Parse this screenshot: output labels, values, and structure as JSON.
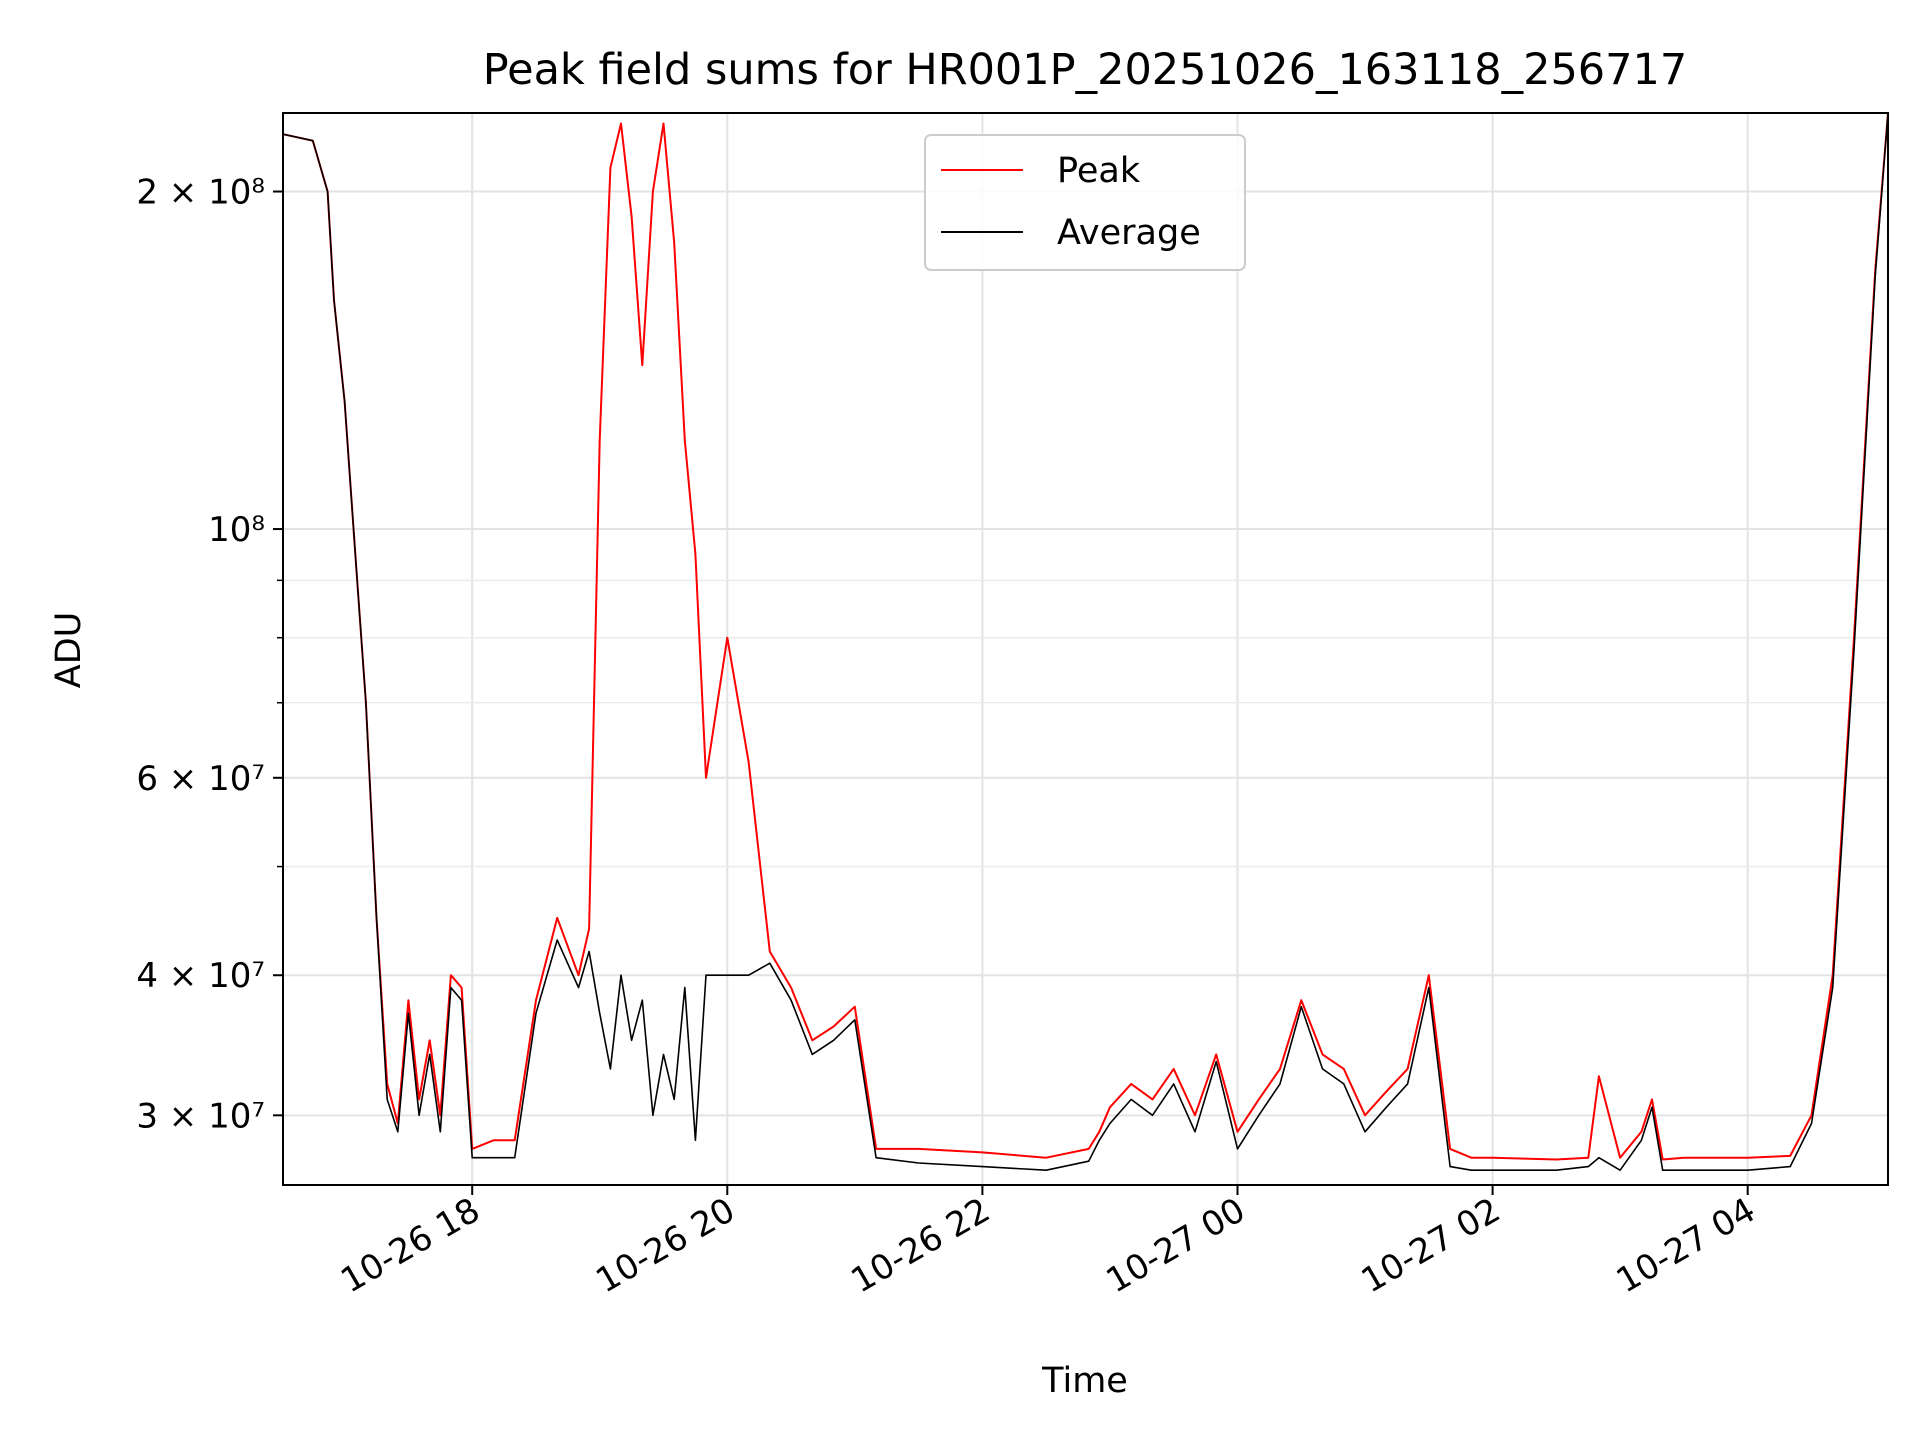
{
  "chart_data": {
    "type": "line",
    "title": "Peak field sums for HR001P_20251026_163118_256717",
    "xlabel": "Time",
    "ylabel": "ADU",
    "yscale": "log",
    "grid": true,
    "legend_position": "top-center",
    "xlim": [
      "2025-10-26 16:31",
      "2025-10-27 05:06"
    ],
    "ylim": [
      26000000,
      235000000
    ],
    "x_ticks": [
      "10-26 18",
      "10-26 20",
      "10-26 22",
      "10-27 00",
      "10-27 02",
      "10-27 04"
    ],
    "x_tick_values": [
      "2025-10-26 18:00",
      "2025-10-26 20:00",
      "2025-10-26 22:00",
      "2025-10-27 00:00",
      "2025-10-27 02:00",
      "2025-10-27 04:00"
    ],
    "y_ticks": [
      {
        "value": 30000000,
        "label": "3 × 10⁷"
      },
      {
        "value": 40000000,
        "label": "4 × 10⁷"
      },
      {
        "value": 60000000,
        "label": "6 × 10⁷"
      },
      {
        "value": 100000000,
        "label": "10⁸"
      },
      {
        "value": 200000000,
        "label": "2 × 10⁸"
      }
    ],
    "series": [
      {
        "name": "Peak",
        "color": "#ff0000",
        "x": [
          "2025-10-26 16:31",
          "2025-10-26 16:45",
          "2025-10-26 16:52",
          "2025-10-26 16:55",
          "2025-10-26 17:00",
          "2025-10-26 17:05",
          "2025-10-26 17:10",
          "2025-10-26 17:15",
          "2025-10-26 17:20",
          "2025-10-26 17:25",
          "2025-10-26 17:30",
          "2025-10-26 17:35",
          "2025-10-26 17:40",
          "2025-10-26 17:45",
          "2025-10-26 17:50",
          "2025-10-26 17:55",
          "2025-10-26 18:00",
          "2025-10-26 18:10",
          "2025-10-26 18:20",
          "2025-10-26 18:30",
          "2025-10-26 18:40",
          "2025-10-26 18:50",
          "2025-10-26 18:55",
          "2025-10-26 19:00",
          "2025-10-26 19:05",
          "2025-10-26 19:10",
          "2025-10-26 19:15",
          "2025-10-26 19:20",
          "2025-10-26 19:25",
          "2025-10-26 19:30",
          "2025-10-26 19:35",
          "2025-10-26 19:40",
          "2025-10-26 19:45",
          "2025-10-26 19:50",
          "2025-10-26 20:00",
          "2025-10-26 20:10",
          "2025-10-26 20:20",
          "2025-10-26 20:30",
          "2025-10-26 20:40",
          "2025-10-26 20:50",
          "2025-10-26 21:00",
          "2025-10-26 21:10",
          "2025-10-26 21:30",
          "2025-10-26 22:00",
          "2025-10-26 22:30",
          "2025-10-26 22:50",
          "2025-10-26 22:55",
          "2025-10-26 23:00",
          "2025-10-26 23:10",
          "2025-10-26 23:20",
          "2025-10-26 23:30",
          "2025-10-26 23:40",
          "2025-10-26 23:50",
          "2025-10-27 00:00",
          "2025-10-27 00:10",
          "2025-10-27 00:20",
          "2025-10-27 00:30",
          "2025-10-27 00:40",
          "2025-10-27 00:50",
          "2025-10-27 01:00",
          "2025-10-27 01:10",
          "2025-10-27 01:20",
          "2025-10-27 01:30",
          "2025-10-27 01:40",
          "2025-10-27 01:50",
          "2025-10-27 02:00",
          "2025-10-27 02:30",
          "2025-10-27 02:45",
          "2025-10-27 02:50",
          "2025-10-27 03:00",
          "2025-10-27 03:10",
          "2025-10-27 03:15",
          "2025-10-27 03:20",
          "2025-10-27 03:30",
          "2025-10-27 04:00",
          "2025-10-27 04:20",
          "2025-10-27 04:30",
          "2025-10-27 04:40",
          "2025-10-27 04:50",
          "2025-10-27 05:00",
          "2025-10-27 05:06"
        ],
        "y": [
          225000000,
          222000000,
          200000000,
          160000000,
          130000000,
          95000000,
          70000000,
          45000000,
          32000000,
          29500000,
          38000000,
          31000000,
          35000000,
          30000000,
          40000000,
          39000000,
          28000000,
          28500000,
          28500000,
          38000000,
          45000000,
          40000000,
          44000000,
          120000000,
          210000000,
          230000000,
          190000000,
          140000000,
          200000000,
          230000000,
          180000000,
          120000000,
          95000000,
          60000000,
          80000000,
          62000000,
          42000000,
          39000000,
          35000000,
          36000000,
          37500000,
          28000000,
          28000000,
          27800000,
          27500000,
          28000000,
          29000000,
          30500000,
          32000000,
          31000000,
          33000000,
          30000000,
          34000000,
          29000000,
          31000000,
          33000000,
          38000000,
          34000000,
          33000000,
          30000000,
          31500000,
          33000000,
          40000000,
          28000000,
          27500000,
          27500000,
          27400000,
          27500000,
          32500000,
          27500000,
          29000000,
          31000000,
          27400000,
          27500000,
          27500000,
          27600000,
          30000000,
          40000000,
          80000000,
          170000000,
          235000000
        ]
      },
      {
        "name": "Average",
        "color": "#000000",
        "x": [
          "2025-10-26 16:31",
          "2025-10-26 16:45",
          "2025-10-26 16:52",
          "2025-10-26 16:55",
          "2025-10-26 17:00",
          "2025-10-26 17:05",
          "2025-10-26 17:10",
          "2025-10-26 17:15",
          "2025-10-26 17:20",
          "2025-10-26 17:25",
          "2025-10-26 17:30",
          "2025-10-26 17:35",
          "2025-10-26 17:40",
          "2025-10-26 17:45",
          "2025-10-26 17:50",
          "2025-10-26 17:55",
          "2025-10-26 18:00",
          "2025-10-26 18:10",
          "2025-10-26 18:20",
          "2025-10-26 18:30",
          "2025-10-26 18:40",
          "2025-10-26 18:50",
          "2025-10-26 18:55",
          "2025-10-26 19:00",
          "2025-10-26 19:05",
          "2025-10-26 19:10",
          "2025-10-26 19:15",
          "2025-10-26 19:20",
          "2025-10-26 19:25",
          "2025-10-26 19:30",
          "2025-10-26 19:35",
          "2025-10-26 19:40",
          "2025-10-26 19:45",
          "2025-10-26 19:50",
          "2025-10-26 20:00",
          "2025-10-26 20:10",
          "2025-10-26 20:20",
          "2025-10-26 20:30",
          "2025-10-26 20:40",
          "2025-10-26 20:50",
          "2025-10-26 21:00",
          "2025-10-26 21:10",
          "2025-10-26 21:30",
          "2025-10-26 22:00",
          "2025-10-26 22:30",
          "2025-10-26 22:50",
          "2025-10-26 22:55",
          "2025-10-26 23:00",
          "2025-10-26 23:10",
          "2025-10-26 23:20",
          "2025-10-26 23:30",
          "2025-10-26 23:40",
          "2025-10-26 23:50",
          "2025-10-27 00:00",
          "2025-10-27 00:10",
          "2025-10-27 00:20",
          "2025-10-27 00:30",
          "2025-10-27 00:40",
          "2025-10-27 00:50",
          "2025-10-27 01:00",
          "2025-10-27 01:10",
          "2025-10-27 01:20",
          "2025-10-27 01:30",
          "2025-10-27 01:40",
          "2025-10-27 01:50",
          "2025-10-27 02:00",
          "2025-10-27 02:30",
          "2025-10-27 02:45",
          "2025-10-27 02:50",
          "2025-10-27 03:00",
          "2025-10-27 03:10",
          "2025-10-27 03:15",
          "2025-10-27 03:20",
          "2025-10-27 03:30",
          "2025-10-27 04:00",
          "2025-10-27 04:20",
          "2025-10-27 04:30",
          "2025-10-27 04:40",
          "2025-10-27 04:50",
          "2025-10-27 05:00",
          "2025-10-27 05:06"
        ],
        "y": [
          225000000,
          222000000,
          200000000,
          160000000,
          130000000,
          95000000,
          70000000,
          45000000,
          31000000,
          29000000,
          37000000,
          30000000,
          34000000,
          29000000,
          39000000,
          38000000,
          27500000,
          27500000,
          27500000,
          37000000,
          43000000,
          39000000,
          42000000,
          37000000,
          33000000,
          40000000,
          35000000,
          38000000,
          30000000,
          34000000,
          31000000,
          39000000,
          28500000,
          40000000,
          40000000,
          40000000,
          41000000,
          38000000,
          34000000,
          35000000,
          36500000,
          27500000,
          27200000,
          27000000,
          26800000,
          27300000,
          28500000,
          29500000,
          31000000,
          30000000,
          32000000,
          29000000,
          33500000,
          28000000,
          30000000,
          32000000,
          37500000,
          33000000,
          32000000,
          29000000,
          30500000,
          32000000,
          39000000,
          27000000,
          26800000,
          26800000,
          26800000,
          27000000,
          27500000,
          26800000,
          28500000,
          30500000,
          26800000,
          26800000,
          26800000,
          27000000,
          29500000,
          39000000,
          78000000,
          168000000,
          235000000
        ]
      }
    ]
  }
}
